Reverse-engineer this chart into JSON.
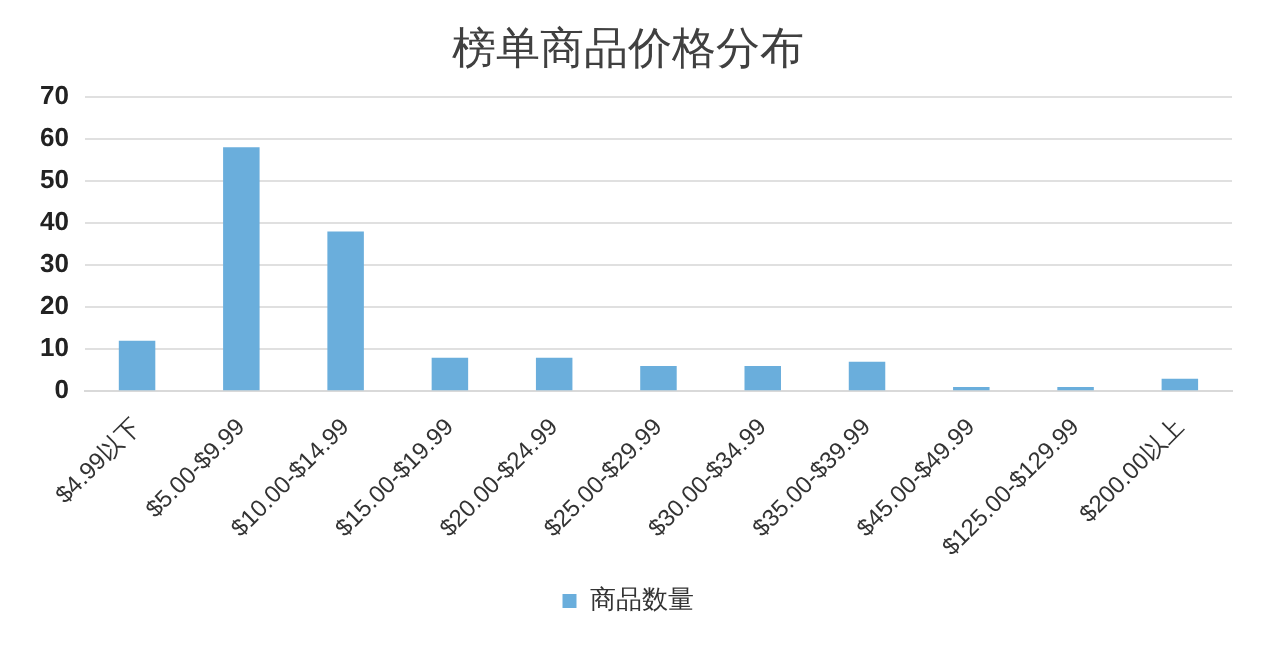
{
  "chart_data": {
    "type": "bar",
    "title": "榜单商品价格分布",
    "categories": [
      "$4.99以下",
      "$5.00-$9.99",
      "$10.00-$14.99",
      "$15.00-$19.99",
      "$20.00-$24.99",
      "$25.00-$29.99",
      "$30.00-$34.99",
      "$35.00-$39.99",
      "$45.00-$49.99",
      "$125.00-$129.99",
      "$200.00以上"
    ],
    "series": [
      {
        "name": "商品数量",
        "color": "#6aaedc",
        "values": [
          12,
          58,
          38,
          8,
          8,
          6,
          6,
          7,
          1,
          1,
          3
        ]
      }
    ],
    "ylim": [
      0,
      70
    ],
    "yticks": [
      0,
      10,
      20,
      30,
      40,
      50,
      60,
      70
    ],
    "grid": "y",
    "legend": "bottom"
  }
}
